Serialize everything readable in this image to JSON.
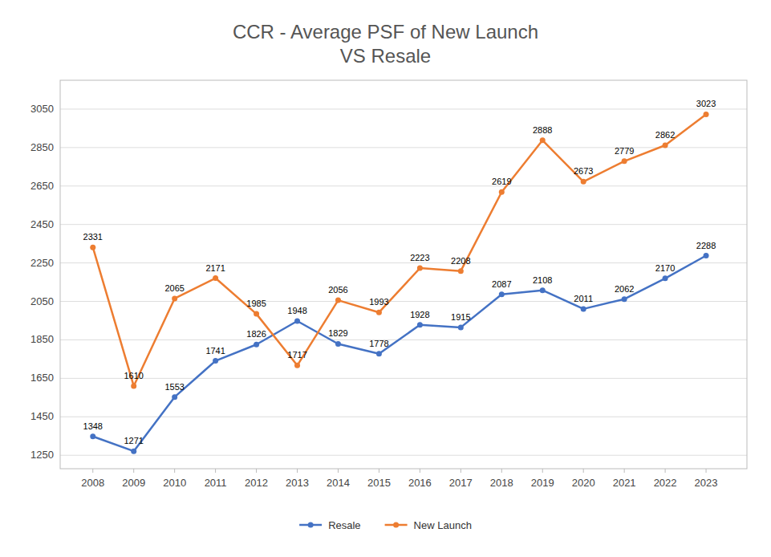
{
  "chart_data": {
    "type": "line",
    "title": "CCR - Average PSF of New Launch\nVS Resale",
    "x": [
      2008,
      2009,
      2010,
      2011,
      2012,
      2013,
      2014,
      2015,
      2016,
      2017,
      2018,
      2019,
      2020,
      2021,
      2022,
      2023
    ],
    "xlim": [
      2007.2,
      2024.0
    ],
    "xticks": [
      2008,
      2009,
      2010,
      2011,
      2012,
      2013,
      2014,
      2015,
      2016,
      2017,
      2018,
      2019,
      2020,
      2021,
      2022,
      2023
    ],
    "ylim": [
      1180,
      3200
    ],
    "yticks": [
      1250,
      1450,
      1650,
      1850,
      2050,
      2250,
      2450,
      2650,
      2850,
      3050
    ],
    "grid": true,
    "legend": "bottom",
    "data_labels": true,
    "marker": "circle",
    "series": [
      {
        "name": "Resale",
        "color": "#4472c4",
        "values": [
          1348,
          1271,
          1553,
          1741,
          1826,
          1948,
          1829,
          1778,
          1928,
          1915,
          2087,
          2108,
          2011,
          2062,
          2170,
          2288
        ]
      },
      {
        "name": "New Launch",
        "color": "#ed7d31",
        "values": [
          2331,
          1610,
          2065,
          2171,
          1985,
          1717,
          2056,
          1993,
          2223,
          2208,
          2619,
          2888,
          2673,
          2779,
          2862,
          3023
        ]
      }
    ]
  }
}
